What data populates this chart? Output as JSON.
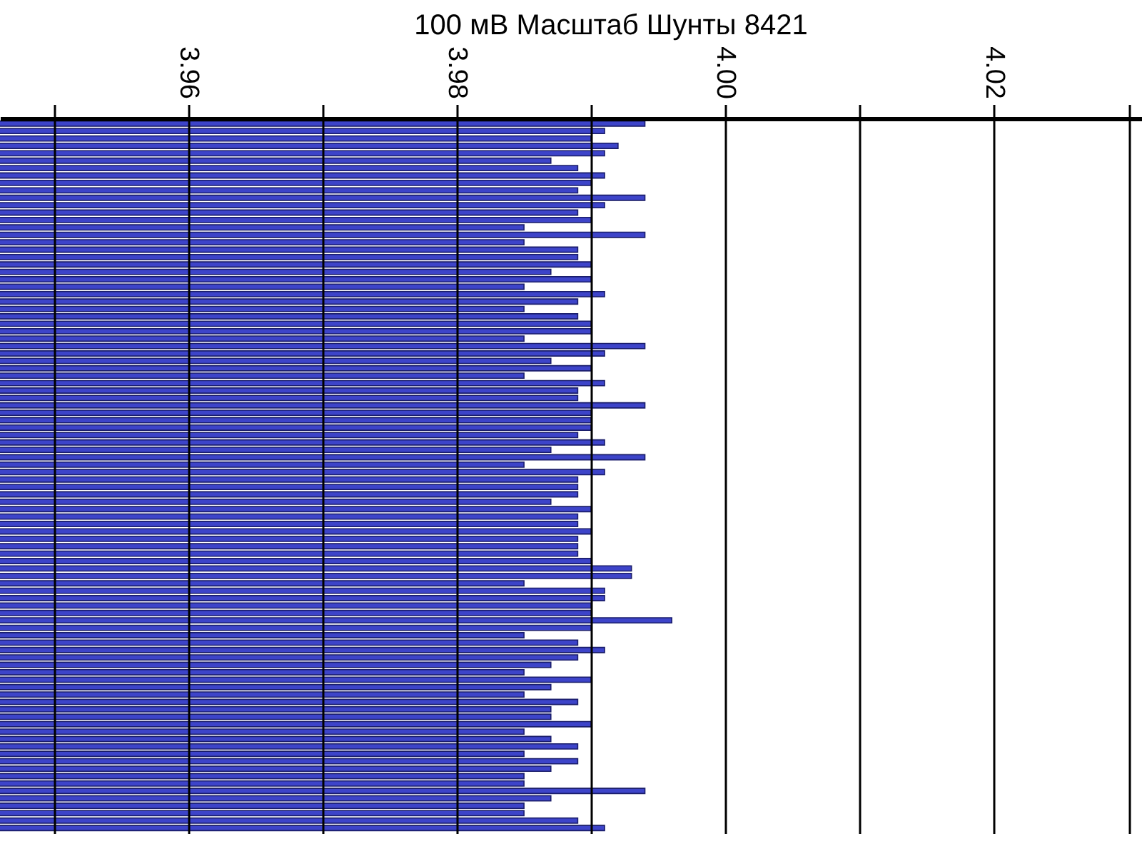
{
  "chart_data": {
    "type": "bar",
    "orientation": "horizontal",
    "title": "100 мВ Масштаб   Шунты 8421",
    "categories": [
      null,
      null,
      null,
      null,
      null,
      null,
      null,
      null,
      null,
      null,
      null,
      null,
      null,
      null,
      null,
      null,
      null,
      null,
      null,
      null,
      null,
      null,
      null,
      null,
      null,
      null,
      null,
      null,
      null,
      null,
      null,
      null,
      null,
      null,
      null,
      null,
      null,
      null,
      null,
      null,
      null,
      null,
      null,
      null,
      null,
      null,
      null,
      null,
      null,
      null,
      null,
      null,
      null,
      null,
      null,
      null,
      null,
      null,
      null,
      null,
      null,
      null,
      null,
      null,
      null,
      null,
      null,
      null,
      null,
      null,
      null,
      null,
      null,
      null,
      null,
      null,
      null,
      null,
      null,
      null,
      null,
      null,
      null,
      null,
      null,
      null,
      null,
      null,
      null,
      null,
      null,
      null,
      null,
      null,
      null,
      null
    ],
    "values": [
      3.994,
      3.991,
      3.99,
      3.992,
      3.991,
      3.987,
      3.989,
      3.991,
      3.99,
      3.989,
      3.994,
      3.991,
      3.989,
      3.99,
      3.985,
      3.994,
      3.985,
      3.989,
      3.989,
      3.99,
      3.987,
      3.99,
      3.985,
      3.991,
      3.989,
      3.985,
      3.989,
      3.99,
      3.99,
      3.985,
      3.994,
      3.991,
      3.987,
      3.99,
      3.985,
      3.991,
      3.989,
      3.989,
      3.994,
      3.99,
      3.99,
      3.99,
      3.989,
      3.991,
      3.987,
      3.994,
      3.985,
      3.991,
      3.989,
      3.989,
      3.989,
      3.987,
      3.99,
      3.989,
      3.989,
      3.99,
      3.989,
      3.989,
      3.989,
      3.99,
      3.993,
      3.993,
      3.985,
      3.991,
      3.991,
      3.99,
      3.99,
      3.996,
      3.99,
      3.985,
      3.989,
      3.991,
      3.989,
      3.987,
      3.985,
      3.99,
      3.987,
      3.985,
      3.989,
      3.987,
      3.987,
      3.99,
      3.985,
      3.987,
      3.989,
      3.985,
      3.989,
      3.987,
      3.985,
      3.985,
      3.994,
      3.987,
      3.985,
      3.985,
      3.989,
      3.991
    ],
    "color": "#3d44c9",
    "xlim": [
      3.946,
      4.031
    ],
    "xticks": [
      {
        "value": 3.95,
        "label": null
      },
      3.96,
      {
        "value": 3.97,
        "label": null
      },
      3.98,
      {
        "value": 3.99,
        "label": null
      },
      {
        "value": 4.0,
        "label": "4.00"
      },
      {
        "value": 4.01,
        "label": null
      },
      4.02,
      {
        "value": 4.03,
        "label": null
      }
    ],
    "grid": "x",
    "tick_labels": "x"
  }
}
